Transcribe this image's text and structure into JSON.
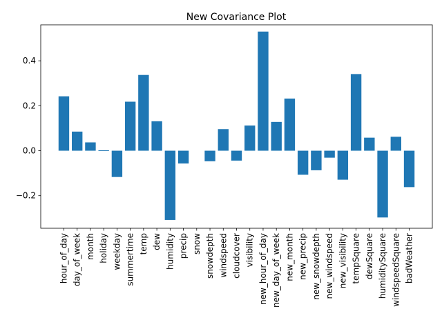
{
  "chart_data": {
    "type": "bar",
    "title": "New Covariance Plot",
    "xlabel": "",
    "ylabel": "",
    "ylim": [
      -0.345,
      0.56
    ],
    "yticks": [
      -0.2,
      0.0,
      0.2,
      0.4
    ],
    "ytick_labels": [
      "−0.2",
      "0.0",
      "0.2",
      "0.4"
    ],
    "bar_color": "#1f77b4",
    "grid": false,
    "categories": [
      "hour_of_day",
      "day_of_week",
      "month",
      "holiday",
      "weekday",
      "summertime",
      "temp",
      "dew",
      "humidity",
      "precip",
      "snow",
      "snowdepth",
      "windspeed",
      "cloudcover",
      "visibility",
      "new_hour_of_day",
      "new_day_of_week",
      "new_month",
      "new_precip",
      "new_snowdepth",
      "new_windspeed",
      "new_visibility",
      "tempSquare",
      "dewSquare",
      "humiditySquare",
      "windspeedSquare",
      "badWeather"
    ],
    "values": [
      0.242,
      0.085,
      0.037,
      -0.003,
      -0.117,
      0.218,
      0.337,
      0.131,
      -0.308,
      -0.057,
      0.0,
      -0.047,
      0.096,
      -0.044,
      0.112,
      0.53,
      0.128,
      0.232,
      -0.107,
      -0.087,
      -0.031,
      -0.129,
      0.341,
      0.058,
      -0.297,
      0.062,
      -0.162
    ]
  }
}
